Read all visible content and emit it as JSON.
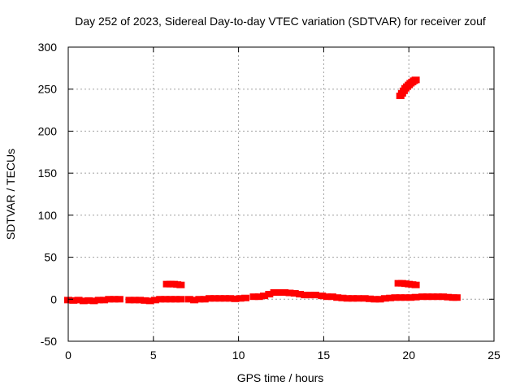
{
  "chart_data": {
    "type": "scatter",
    "title": "Day 252 of 2023, Sidereal Day-to-day VTEC variation (SDTVAR) for receiver zouf",
    "xlabel": "GPS time / hours",
    "ylabel": "SDTVAR / TECUs",
    "xlim": [
      0,
      25
    ],
    "ylim": [
      -50,
      300
    ],
    "xticks": [
      0,
      5,
      10,
      15,
      20,
      25
    ],
    "yticks": [
      -50,
      0,
      50,
      100,
      150,
      200,
      250,
      300
    ],
    "grid": true,
    "series": [
      {
        "name": "SDTVAR",
        "color": "#ff0000",
        "points": [
          [
            0.0,
            -1
          ],
          [
            0.3,
            -1.5
          ],
          [
            0.6,
            -1
          ],
          [
            0.9,
            -2
          ],
          [
            1.2,
            -1.5
          ],
          [
            1.5,
            -2
          ],
          [
            1.8,
            -1
          ],
          [
            2.1,
            -1
          ],
          [
            2.4,
            0
          ],
          [
            2.7,
            0
          ],
          [
            3.0,
            0
          ],
          [
            3.6,
            -1
          ],
          [
            3.9,
            -1
          ],
          [
            4.2,
            -1
          ],
          [
            4.5,
            -1.5
          ],
          [
            4.8,
            -2
          ],
          [
            5.1,
            -1
          ],
          [
            5.4,
            0
          ],
          [
            5.7,
            0
          ],
          [
            6.0,
            0
          ],
          [
            6.3,
            0
          ],
          [
            6.6,
            0
          ],
          [
            5.8,
            18
          ],
          [
            6.0,
            18
          ],
          [
            6.2,
            18
          ],
          [
            6.4,
            17.5
          ],
          [
            6.6,
            17
          ],
          [
            7.1,
            0
          ],
          [
            7.4,
            -1
          ],
          [
            7.7,
            0
          ],
          [
            8.0,
            0
          ],
          [
            8.3,
            1
          ],
          [
            8.6,
            1
          ],
          [
            8.9,
            1
          ],
          [
            9.2,
            1
          ],
          [
            9.5,
            1
          ],
          [
            9.8,
            0.5
          ],
          [
            10.1,
            1
          ],
          [
            10.4,
            1.5
          ],
          [
            10.9,
            3
          ],
          [
            11.2,
            3
          ],
          [
            11.5,
            4
          ],
          [
            11.8,
            6
          ],
          [
            12.1,
            8
          ],
          [
            12.4,
            8
          ],
          [
            12.7,
            8
          ],
          [
            13.0,
            7.5
          ],
          [
            13.3,
            7
          ],
          [
            13.6,
            6
          ],
          [
            13.9,
            5
          ],
          [
            14.2,
            5
          ],
          [
            14.5,
            5
          ],
          [
            14.9,
            4
          ],
          [
            15.2,
            3
          ],
          [
            15.5,
            3
          ],
          [
            15.8,
            2
          ],
          [
            16.1,
            1.5
          ],
          [
            16.4,
            1
          ],
          [
            16.7,
            1
          ],
          [
            17.0,
            1
          ],
          [
            17.4,
            1
          ],
          [
            17.7,
            0.5
          ],
          [
            18.0,
            0
          ],
          [
            18.3,
            0
          ],
          [
            18.6,
            1
          ],
          [
            18.9,
            1.5
          ],
          [
            19.2,
            2
          ],
          [
            19.5,
            2
          ],
          [
            19.8,
            2
          ],
          [
            20.1,
            2
          ],
          [
            20.4,
            2.5
          ],
          [
            19.4,
            19
          ],
          [
            19.6,
            19
          ],
          [
            19.8,
            18.5
          ],
          [
            20.0,
            18
          ],
          [
            20.2,
            17.5
          ],
          [
            20.4,
            17
          ],
          [
            19.5,
            242
          ],
          [
            19.6,
            245
          ],
          [
            19.7,
            248
          ],
          [
            19.8,
            251
          ],
          [
            19.9,
            253
          ],
          [
            20.0,
            255
          ],
          [
            20.1,
            257
          ],
          [
            20.2,
            258.5
          ],
          [
            20.3,
            260
          ],
          [
            20.4,
            261
          ],
          [
            20.8,
            3
          ],
          [
            21.1,
            3
          ],
          [
            21.4,
            3
          ],
          [
            21.7,
            3
          ],
          [
            22.0,
            3
          ],
          [
            22.3,
            2.5
          ],
          [
            22.6,
            2
          ],
          [
            22.8,
            2
          ]
        ]
      }
    ]
  }
}
